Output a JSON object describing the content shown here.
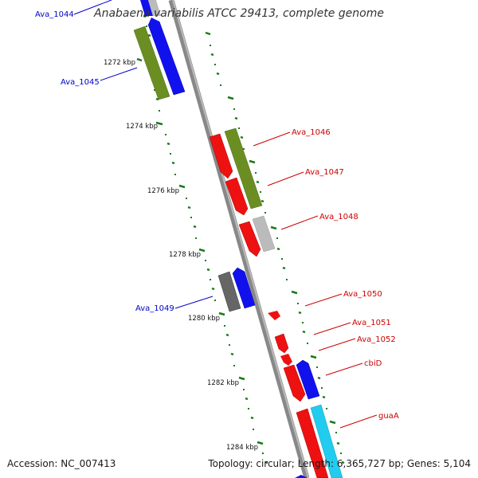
{
  "title": "Anabaena variabilis ATCC 29413, complete genome",
  "footer": {
    "accession": "Accession: NC_007413",
    "summary": "Topology: circular; Length: 6,365,727 bp; Genes: 5,104"
  },
  "colors": {
    "background": "#ffffff",
    "backbone": "#888888",
    "tick": "#1a7a1a",
    "gene_red": "#ee1111",
    "gene_blue": "#1111ee",
    "gene_olive": "#6b8e23",
    "gene_gray": "#666666",
    "gene_lightgray": "#bbbbbb",
    "gene_cyan": "#22ccee",
    "label_blue": "#0000cc",
    "label_red": "#cc0000"
  },
  "scale_labels": [
    "1272 kbp",
    "1274 kbp",
    "1276 kbp",
    "1278 kbp",
    "1280 kbp",
    "1282 kbp",
    "1284 kbp"
  ],
  "gene_labels": [
    {
      "name": "Ava_1044",
      "color": "blue"
    },
    {
      "name": "Ava_1045",
      "color": "blue"
    },
    {
      "name": "Ava_1046",
      "color": "red"
    },
    {
      "name": "Ava_1047",
      "color": "red"
    },
    {
      "name": "Ava_1048",
      "color": "red"
    },
    {
      "name": "Ava_1049",
      "color": "blue"
    },
    {
      "name": "Ava_1050",
      "color": "red"
    },
    {
      "name": "Ava_1051",
      "color": "red"
    },
    {
      "name": "Ava_1052",
      "color": "red"
    },
    {
      "name": "cbiD",
      "color": "red"
    },
    {
      "name": "guaA",
      "color": "red"
    }
  ]
}
